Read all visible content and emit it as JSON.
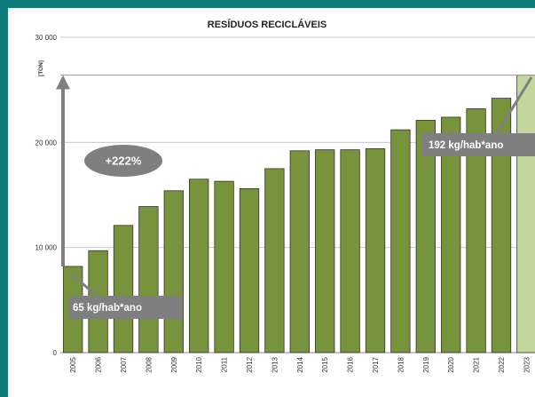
{
  "chart_data": {
    "type": "bar",
    "title": "RESÍDUOS RECICLÁVEIS",
    "unit_label": "[TON]",
    "ylim": [
      0,
      30000
    ],
    "y_ticks": [
      0,
      10000,
      20000,
      30000
    ],
    "y_tick_labels": [
      "0",
      "10 000",
      "20 000",
      "30 000"
    ],
    "grid": true,
    "categories": [
      "2005",
      "2006",
      "2007",
      "2008",
      "2009",
      "2010",
      "2011",
      "2012",
      "2013",
      "2014",
      "2015",
      "2016",
      "2017",
      "2018",
      "2019",
      "2020",
      "2021",
      "2022",
      "2023"
    ],
    "values": [
      8200,
      9700,
      12100,
      13900,
      15400,
      16500,
      16300,
      15600,
      17500,
      19200,
      19300,
      19300,
      19400,
      21200,
      22100,
      22400,
      23200,
      24200,
      26400
    ],
    "highlight_index": 18,
    "colors": {
      "bar": "#77933c",
      "bar_stroke": "#333333",
      "highlight_bar": "#c3d69b",
      "grid": "#c8c8c8",
      "reference_line": "#9a9a9a",
      "annotation": "#7f7f7f",
      "annotation_text": "#ffffff"
    },
    "annotations": {
      "growth": "+222%",
      "start_label": "65 kg/hab*ano",
      "end_label": "192 kg/hab*ano"
    }
  }
}
